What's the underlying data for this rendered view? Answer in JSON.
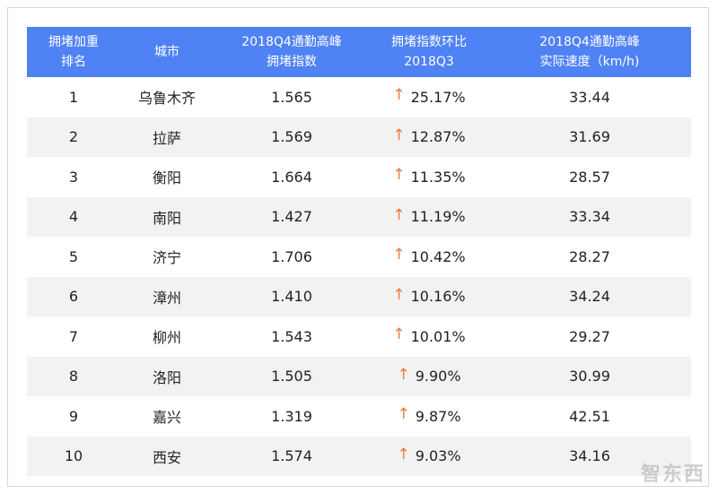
{
  "table": {
    "header": [
      [
        "拥堵加重",
        "排名"
      ],
      [
        "城市"
      ],
      [
        "2018Q4通勤高峰",
        "拥堵指数"
      ],
      [
        "拥堵指数环比",
        "2018Q3"
      ],
      [
        "2018Q4通勤高峰",
        "实际速度（km/h)"
      ]
    ],
    "rows": [
      [
        "1",
        "乌鲁木齐",
        "1.565",
        "25.17%",
        "33.44"
      ],
      [
        "2",
        "拉萨",
        "1.569",
        "12.87%",
        "31.69"
      ],
      [
        "3",
        "衡阳",
        "1.664",
        "11.35%",
        "28.57"
      ],
      [
        "4",
        "南阳",
        "1.427",
        "11.19%",
        "33.34"
      ],
      [
        "5",
        "济宁",
        "1.706",
        "10.42%",
        "28.27"
      ],
      [
        "6",
        "漳州",
        "1.410",
        "10.16%",
        "34.24"
      ],
      [
        "7",
        "柳州",
        "1.543",
        "10.01%",
        "29.27"
      ],
      [
        "8",
        "洛阳",
        "1.505",
        "9.90%",
        "30.99"
      ],
      [
        "9",
        "嘉兴",
        "1.319",
        "9.87%",
        "42.51"
      ],
      [
        "10",
        "西安",
        "1.574",
        "9.03%",
        "34.16"
      ]
    ]
  },
  "watermark": "智东西"
}
